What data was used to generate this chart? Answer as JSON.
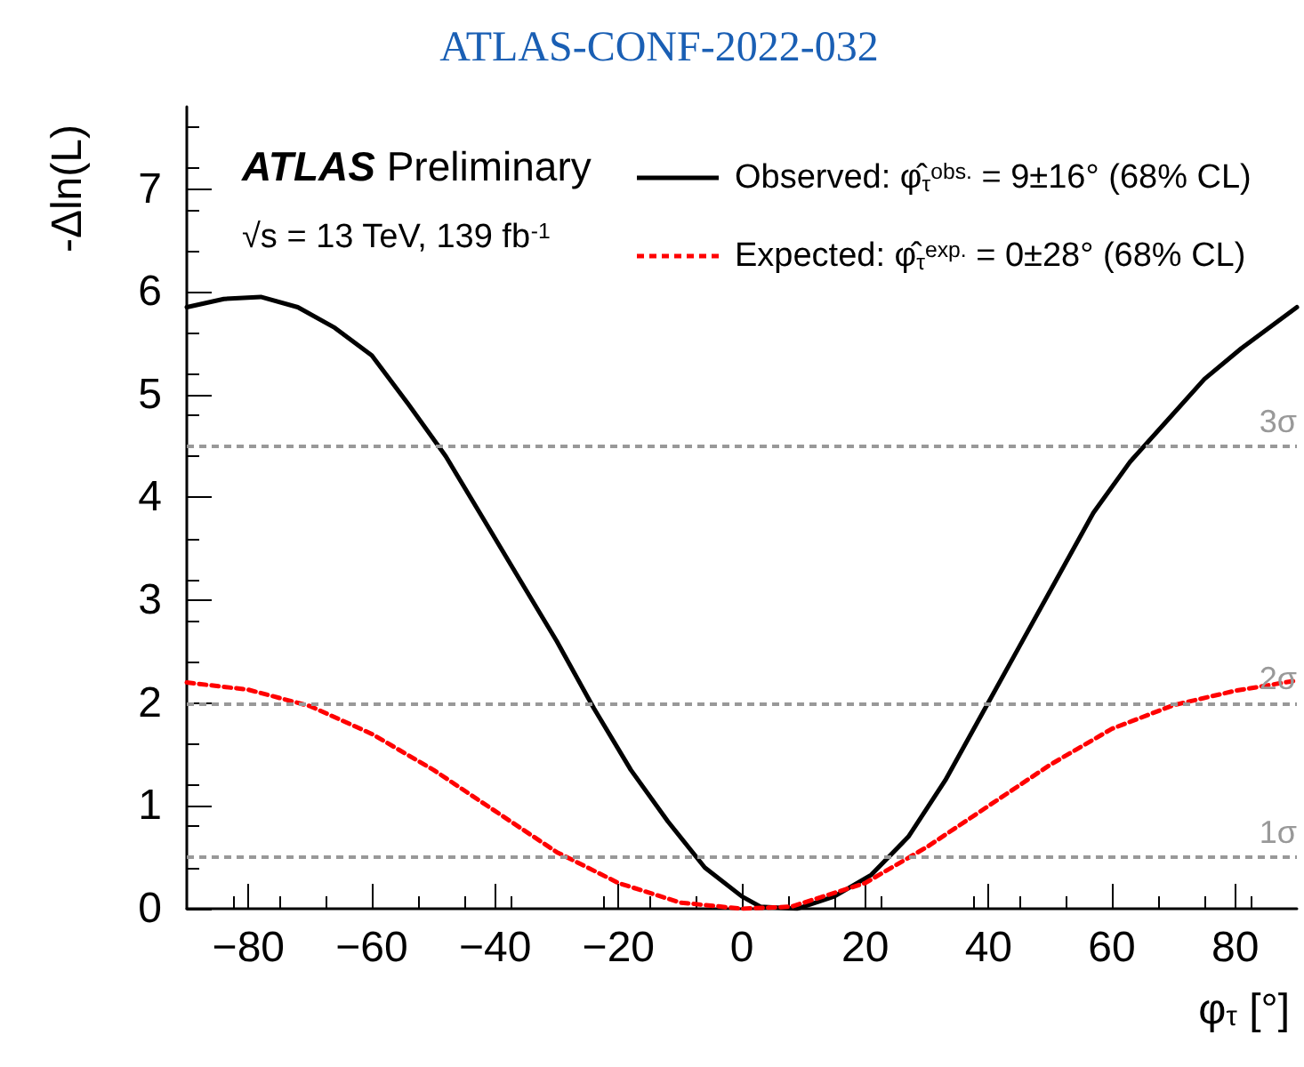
{
  "chart_data": {
    "type": "line",
    "title": "ATLAS-CONF-2022-032",
    "xlabel": "φ$_{τ}$ [°]",
    "ylabel": "-Δln(L)",
    "annotations": [
      "ATLAS Preliminary",
      "√s = 13 TeV, 139 fb$^{-1}$"
    ],
    "series": [
      {
        "name": "Observed: φ̂$_{τ}$$^{obs.}$ = 9±16° (68% CL)",
        "color": "#000000",
        "line_style": "solid",
        "x": [
          -90,
          -84,
          -78,
          -72,
          -66,
          -60,
          -54,
          -48,
          -42,
          -36,
          -30,
          -24,
          -18,
          -12,
          -6,
          0,
          3,
          9,
          15,
          21,
          27,
          33,
          39,
          45,
          51,
          57,
          63,
          69,
          75,
          81,
          90
        ],
        "values": [
          5.85,
          5.93,
          5.95,
          5.85,
          5.65,
          5.38,
          4.9,
          4.4,
          3.8,
          3.2,
          2.6,
          1.95,
          1.35,
          0.85,
          0.4,
          0.12,
          0.02,
          0,
          0.12,
          0.33,
          0.7,
          1.25,
          1.9,
          2.55,
          3.2,
          3.85,
          4.35,
          4.75,
          5.15,
          5.45,
          5.85
        ]
      },
      {
        "name": "Expected: φ̂$_{τ}$$^{exp.}$ = 0±28° (68% CL)",
        "color": "#ff0000",
        "line_style": "dashed",
        "x": [
          -90,
          -80,
          -70,
          -60,
          -50,
          -40,
          -30,
          -20,
          -10,
          0,
          8,
          20,
          30,
          40,
          50,
          60,
          70,
          80,
          90
        ],
        "values": [
          2.2,
          2.13,
          1.97,
          1.7,
          1.35,
          0.95,
          0.55,
          0.25,
          0.06,
          0,
          0.02,
          0.25,
          0.6,
          1.0,
          1.4,
          1.75,
          1.98,
          2.12,
          2.22
        ]
      }
    ],
    "ref_lines": [
      {
        "axis": "y",
        "value": 0.5,
        "label": "1σ",
        "color": "#999999",
        "line_style": "dashed"
      },
      {
        "axis": "y",
        "value": 2,
        "label": "2σ",
        "color": "#999999",
        "line_style": "dashed"
      },
      {
        "axis": "y",
        "value": 4.5,
        "label": "3σ",
        "color": "#999999",
        "line_style": "dashed"
      }
    ],
    "xlim": [
      -90,
      90
    ],
    "xticks": [
      -80,
      -60,
      -40,
      -20,
      0,
      20,
      40,
      60,
      80
    ],
    "ylim": [
      0,
      7.8
    ],
    "yticks": [
      0,
      1,
      2,
      3,
      4,
      5,
      6,
      7
    ],
    "grid": false,
    "legend": "top right",
    "marker": "none"
  }
}
